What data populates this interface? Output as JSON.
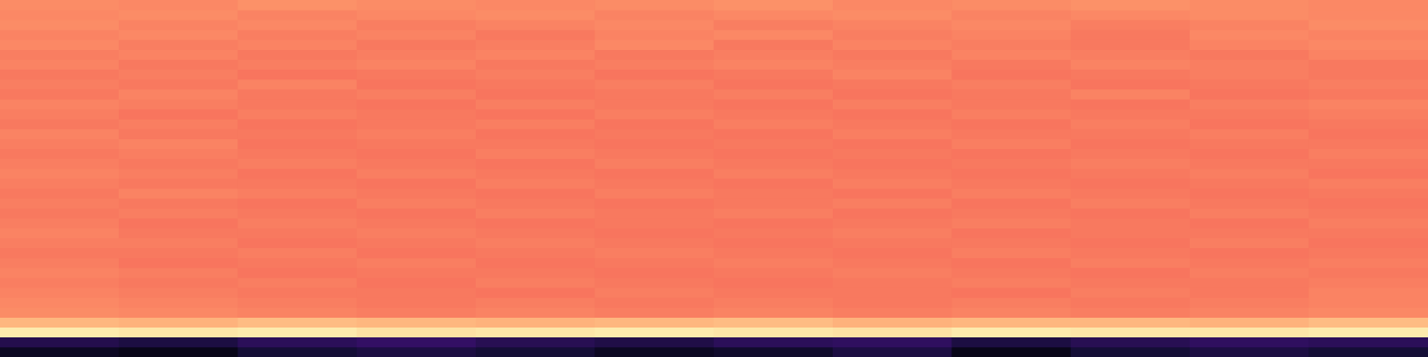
{
  "chart_data": {
    "type": "heatmap",
    "tick_labels": false,
    "color_range": [
      0,
      1
    ],
    "cells": [
      [
        0.76,
        0.75,
        0.77,
        0.76,
        0.75,
        0.76,
        0.77,
        0.75,
        0.76,
        0.77,
        0.76,
        0.75
      ],
      [
        0.75,
        0.76,
        0.74,
        0.75,
        0.76,
        0.74,
        0.75,
        0.76,
        0.74,
        0.75,
        0.76,
        0.75
      ],
      [
        0.76,
        0.74,
        0.75,
        0.73,
        0.74,
        0.75,
        0.73,
        0.74,
        0.75,
        0.73,
        0.74,
        0.76
      ],
      [
        0.74,
        0.75,
        0.73,
        0.74,
        0.72,
        0.74,
        0.75,
        0.73,
        0.74,
        0.72,
        0.75,
        0.74
      ],
      [
        0.75,
        0.73,
        0.74,
        0.72,
        0.73,
        0.75,
        0.72,
        0.74,
        0.73,
        0.72,
        0.74,
        0.75
      ],
      [
        0.73,
        0.74,
        0.72,
        0.73,
        0.74,
        0.72,
        0.73,
        0.72,
        0.74,
        0.73,
        0.72,
        0.74
      ],
      [
        0.74,
        0.72,
        0.73,
        0.74,
        0.72,
        0.73,
        0.74,
        0.73,
        0.72,
        0.74,
        0.73,
        0.72
      ],
      [
        0.72,
        0.73,
        0.71,
        0.72,
        0.73,
        0.71,
        0.72,
        0.74,
        0.71,
        0.72,
        0.73,
        0.72
      ],
      [
        0.73,
        0.72,
        0.74,
        0.71,
        0.72,
        0.73,
        0.71,
        0.72,
        0.73,
        0.71,
        0.72,
        0.73
      ],
      [
        0.72,
        0.74,
        0.72,
        0.73,
        0.71,
        0.72,
        0.73,
        0.71,
        0.72,
        0.74,
        0.71,
        0.72
      ],
      [
        0.74,
        0.73,
        0.72,
        0.71,
        0.73,
        0.72,
        0.71,
        0.73,
        0.72,
        0.71,
        0.73,
        0.74
      ],
      [
        0.73,
        0.71,
        0.73,
        0.72,
        0.71,
        0.73,
        0.72,
        0.71,
        0.73,
        0.72,
        0.72,
        0.73
      ],
      [
        0.72,
        0.73,
        0.71,
        0.72,
        0.73,
        0.71,
        0.73,
        0.72,
        0.71,
        0.73,
        0.71,
        0.72
      ],
      [
        0.74,
        0.72,
        0.72,
        0.73,
        0.71,
        0.72,
        0.71,
        0.73,
        0.72,
        0.72,
        0.73,
        0.71
      ],
      [
        0.73,
        0.74,
        0.71,
        0.72,
        0.72,
        0.71,
        0.72,
        0.71,
        0.73,
        0.71,
        0.72,
        0.72
      ],
      [
        0.72,
        0.73,
        0.72,
        0.71,
        0.73,
        0.72,
        0.71,
        0.72,
        0.71,
        0.72,
        0.71,
        0.73
      ],
      [
        0.73,
        0.72,
        0.73,
        0.72,
        0.71,
        0.73,
        0.72,
        0.71,
        0.72,
        0.73,
        0.72,
        0.72
      ],
      [
        0.74,
        0.73,
        0.71,
        0.73,
        0.72,
        0.71,
        0.73,
        0.72,
        0.71,
        0.72,
        0.73,
        0.71
      ],
      [
        0.73,
        0.72,
        0.72,
        0.71,
        0.73,
        0.72,
        0.71,
        0.73,
        0.72,
        0.71,
        0.72,
        0.73
      ],
      [
        0.72,
        0.74,
        0.73,
        0.72,
        0.71,
        0.73,
        0.72,
        0.71,
        0.73,
        0.72,
        0.71,
        0.72
      ],
      [
        0.73,
        0.72,
        0.71,
        0.73,
        0.72,
        0.71,
        0.72,
        0.73,
        0.71,
        0.73,
        0.72,
        0.71
      ],
      [
        0.72,
        0.73,
        0.72,
        0.71,
        0.73,
        0.72,
        0.73,
        0.71,
        0.72,
        0.71,
        0.73,
        0.72
      ],
      [
        0.73,
        0.71,
        0.73,
        0.72,
        0.71,
        0.72,
        0.71,
        0.72,
        0.73,
        0.72,
        0.71,
        0.73
      ],
      [
        0.74,
        0.72,
        0.72,
        0.73,
        0.72,
        0.71,
        0.72,
        0.73,
        0.71,
        0.72,
        0.72,
        0.72
      ],
      [
        0.73,
        0.73,
        0.71,
        0.72,
        0.73,
        0.72,
        0.71,
        0.72,
        0.72,
        0.71,
        0.73,
        0.71
      ],
      [
        0.72,
        0.72,
        0.73,
        0.71,
        0.72,
        0.73,
        0.72,
        0.71,
        0.73,
        0.72,
        0.71,
        0.72
      ],
      [
        0.73,
        0.71,
        0.72,
        0.73,
        0.71,
        0.72,
        0.73,
        0.72,
        0.71,
        0.73,
        0.72,
        0.73
      ],
      [
        0.74,
        0.73,
        0.71,
        0.72,
        0.72,
        0.71,
        0.72,
        0.73,
        0.72,
        0.71,
        0.73,
        0.72
      ],
      [
        0.73,
        0.72,
        0.73,
        0.71,
        0.73,
        0.72,
        0.71,
        0.72,
        0.73,
        0.72,
        0.72,
        0.73
      ],
      [
        0.74,
        0.73,
        0.72,
        0.72,
        0.71,
        0.73,
        0.72,
        0.72,
        0.71,
        0.73,
        0.72,
        0.74
      ],
      [
        0.75,
        0.74,
        0.73,
        0.72,
        0.73,
        0.72,
        0.73,
        0.72,
        0.73,
        0.72,
        0.73,
        0.74
      ],
      [
        0.76,
        0.75,
        0.74,
        0.73,
        0.74,
        0.73,
        0.74,
        0.73,
        0.74,
        0.73,
        0.74,
        0.75
      ],
      [
        0.85,
        0.84,
        0.86,
        0.85,
        0.84,
        0.85,
        0.86,
        0.84,
        0.85,
        0.85,
        0.84,
        0.86
      ],
      [
        0.96,
        0.95,
        0.96,
        0.94,
        0.95,
        0.96,
        0.95,
        0.94,
        0.96,
        0.95,
        0.95,
        0.96
      ],
      [
        0.14,
        0.12,
        0.16,
        0.18,
        0.15,
        0.13,
        0.16,
        0.17,
        0.12,
        0.15,
        0.17,
        0.16
      ],
      [
        0.06,
        0.04,
        0.1,
        0.12,
        0.1,
        0.06,
        0.08,
        0.12,
        0.04,
        0.1,
        0.12,
        0.1
      ]
    ]
  }
}
